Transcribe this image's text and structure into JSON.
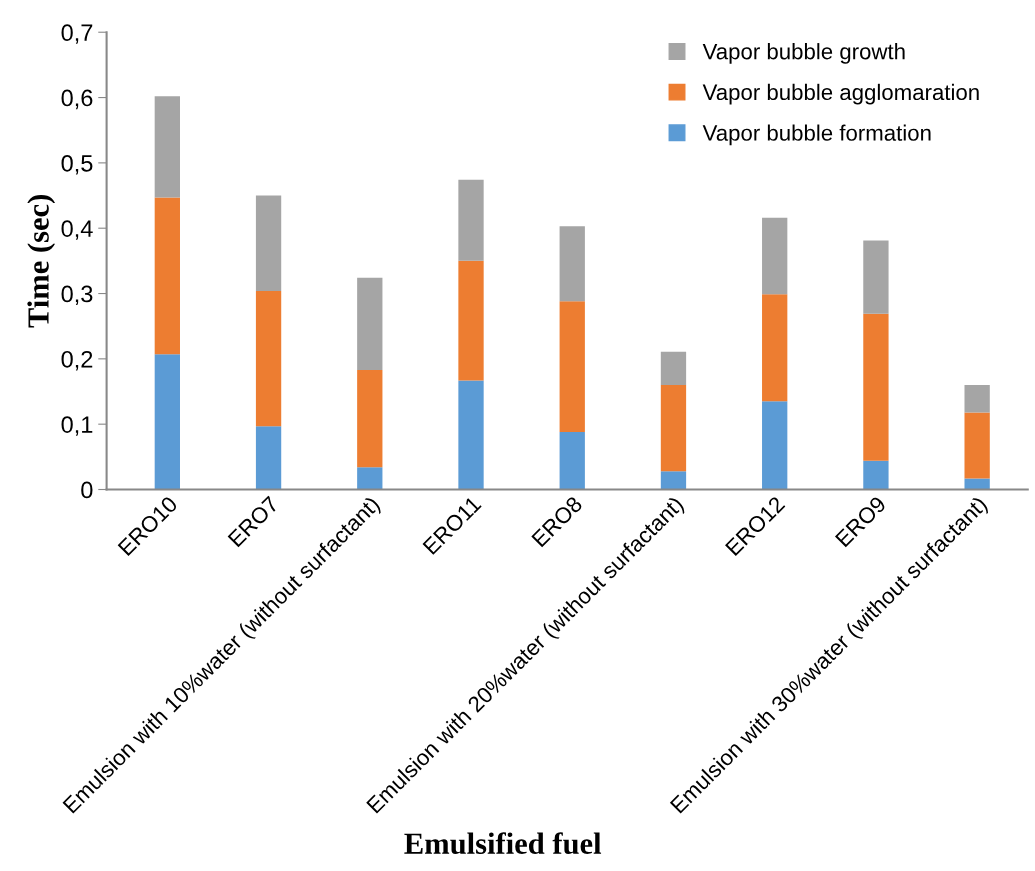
{
  "chart_data": {
    "type": "bar",
    "stacked": true,
    "xlabel": "Emulsified fuel",
    "ylabel": "Time (sec)",
    "categories": [
      "ERO10",
      "ERO7",
      "Emulsion with 10%water (without surfactant)",
      "ERO11",
      "ERO8",
      "Emulsion with 20%water (without surfactant)",
      "ERO12",
      "ERO9",
      "Emulsion with 30%water (without surfactant)"
    ],
    "series": [
      {
        "name": "Vapor bubble formation",
        "color": "#5b9bd5",
        "values": [
          0.207,
          0.097,
          0.034,
          0.167,
          0.088,
          0.028,
          0.135,
          0.044,
          0.017
        ]
      },
      {
        "name": "Vapor bubble agglomaration",
        "color": "#ed7d31",
        "values": [
          0.24,
          0.207,
          0.149,
          0.183,
          0.2,
          0.132,
          0.164,
          0.225,
          0.101
        ]
      },
      {
        "name": "Vapor bubble growth",
        "color": "#a5a5a5",
        "values": [
          0.155,
          0.146,
          0.141,
          0.124,
          0.115,
          0.051,
          0.117,
          0.112,
          0.042
        ]
      }
    ],
    "ylim": [
      0,
      0.7
    ],
    "yticks": [
      0,
      {
        "value": 0.1,
        "label": "0,1"
      },
      {
        "value": 0.2,
        "label": "0,2"
      },
      {
        "value": 0.3,
        "label": "0,3"
      },
      {
        "value": 0.4,
        "label": "0,4"
      },
      {
        "value": 0.5,
        "label": "0,5"
      },
      {
        "value": 0.6,
        "label": "0,6"
      },
      {
        "value": 0.7,
        "label": "0,7"
      }
    ],
    "grid": false,
    "legend": "top right"
  }
}
